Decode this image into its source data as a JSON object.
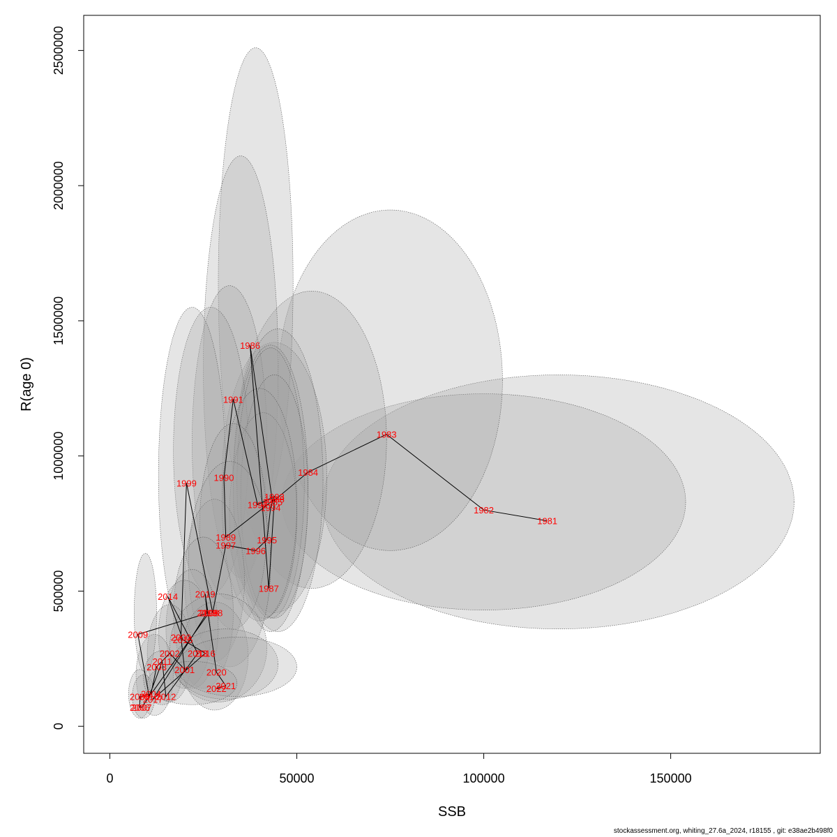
{
  "footer": "stockassessment.org, whiting_27.6a_2024, r18155 , git: e38ae2b498f0",
  "chart_data": {
    "type": "scatter",
    "title": "",
    "xlabel": "SSB",
    "ylabel": "R(age 0)",
    "xlim": [
      -7000,
      190000
    ],
    "ylim": [
      -100000,
      2630000
    ],
    "xticks": [
      0,
      50000,
      100000,
      150000
    ],
    "xtick_labels": [
      "0",
      "50000",
      "100000",
      "150000"
    ],
    "yticks": [
      0,
      500000,
      1000000,
      1500000,
      2000000,
      2500000
    ],
    "ytick_labels": [
      "0",
      "500000",
      "1000000",
      "1500000",
      "2000000",
      "2500000"
    ],
    "grid": false,
    "connected_by_year": true,
    "point_color": "#ff0000",
    "line_color": "#000000",
    "ellipse_fill": "#a0a0a0",
    "points": [
      {
        "year": "1981",
        "ssb": 117000,
        "r": 760000
      },
      {
        "year": "1982",
        "ssb": 100000,
        "r": 800000
      },
      {
        "year": "1983",
        "ssb": 74000,
        "r": 1080000
      },
      {
        "year": "1984",
        "ssb": 53000,
        "r": 940000
      },
      {
        "year": "1985",
        "ssb": 43500,
        "r": 830000
      },
      {
        "year": "1986",
        "ssb": 37500,
        "r": 1410000
      },
      {
        "year": "1987",
        "ssb": 42500,
        "r": 510000
      },
      {
        "year": "1988",
        "ssb": 44000,
        "r": 840000
      },
      {
        "year": "1989",
        "ssb": 31000,
        "r": 700000
      },
      {
        "year": "1990",
        "ssb": 30500,
        "r": 920000
      },
      {
        "year": "1991",
        "ssb": 33000,
        "r": 1210000
      },
      {
        "year": "1992",
        "ssb": 39500,
        "r": 820000
      },
      {
        "year": "1993",
        "ssb": 44000,
        "r": 850000
      },
      {
        "year": "1994",
        "ssb": 43000,
        "r": 810000
      },
      {
        "year": "1995",
        "ssb": 42000,
        "r": 690000
      },
      {
        "year": "1996",
        "ssb": 39000,
        "r": 650000
      },
      {
        "year": "1997",
        "ssb": 31000,
        "r": 670000
      },
      {
        "year": "1998",
        "ssb": 27500,
        "r": 420000
      },
      {
        "year": "1999",
        "ssb": 20500,
        "r": 900000
      },
      {
        "year": "2000",
        "ssb": 19000,
        "r": 330000
      },
      {
        "year": "2001",
        "ssb": 20000,
        "r": 210000
      },
      {
        "year": "2002",
        "ssb": 16000,
        "r": 270000
      },
      {
        "year": "2003",
        "ssb": 12500,
        "r": 220000
      },
      {
        "year": "2004",
        "ssb": 11000,
        "r": 120000
      },
      {
        "year": "2005",
        "ssb": 8000,
        "r": 110000
      },
      {
        "year": "2006",
        "ssb": 8000,
        "r": 70000
      },
      {
        "year": "2007",
        "ssb": 8500,
        "r": 70000
      },
      {
        "year": "2008",
        "ssb": 26500,
        "r": 420000
      },
      {
        "year": "2009",
        "ssb": 7500,
        "r": 340000
      },
      {
        "year": "2010",
        "ssb": 10500,
        "r": 110000
      },
      {
        "year": "2011",
        "ssb": 14000,
        "r": 240000
      },
      {
        "year": "2012",
        "ssb": 15000,
        "r": 110000
      },
      {
        "year": "2013",
        "ssb": 23500,
        "r": 270000
      },
      {
        "year": "2014",
        "ssb": 15500,
        "r": 480000
      },
      {
        "year": "2015",
        "ssb": 19500,
        "r": 320000
      },
      {
        "year": "2016",
        "ssb": 25500,
        "r": 270000
      },
      {
        "year": "2017",
        "ssb": 11500,
        "r": 100000
      },
      {
        "year": "2018",
        "ssb": 26000,
        "r": 420000
      },
      {
        "year": "2019",
        "ssb": 25500,
        "r": 490000
      },
      {
        "year": "2020",
        "ssb": 28500,
        "r": 200000
      },
      {
        "year": "2021",
        "ssb": 31000,
        "r": 150000
      },
      {
        "year": "2022",
        "ssb": 28500,
        "r": 140000
      }
    ],
    "ellipses": [
      {
        "cx": 120000,
        "cy": 830000,
        "rx": 63000,
        "ry": 470000
      },
      {
        "cx": 100000,
        "cy": 830000,
        "rx": 54000,
        "ry": 400000
      },
      {
        "cx": 75000,
        "cy": 1280000,
        "rx": 30000,
        "ry": 630000
      },
      {
        "cx": 54000,
        "cy": 1060000,
        "rx": 20000,
        "ry": 550000
      },
      {
        "cx": 44000,
        "cy": 920000,
        "rx": 14000,
        "ry": 500000
      },
      {
        "cx": 39000,
        "cy": 1640000,
        "rx": 10000,
        "ry": 870000
      },
      {
        "cx": 35000,
        "cy": 1330000,
        "rx": 10000,
        "ry": 780000
      },
      {
        "cx": 45000,
        "cy": 910000,
        "rx": 12000,
        "ry": 560000
      },
      {
        "cx": 32000,
        "cy": 1050000,
        "rx": 10000,
        "ry": 580000
      },
      {
        "cx": 27000,
        "cy": 1020000,
        "rx": 10000,
        "ry": 530000
      },
      {
        "cx": 22000,
        "cy": 930000,
        "rx": 9000,
        "ry": 620000
      },
      {
        "cx": 43000,
        "cy": 880000,
        "rx": 10000,
        "ry": 530000
      },
      {
        "cx": 43000,
        "cy": 900000,
        "rx": 9000,
        "ry": 500000
      },
      {
        "cx": 44000,
        "cy": 850000,
        "rx": 9000,
        "ry": 450000
      },
      {
        "cx": 41000,
        "cy": 780000,
        "rx": 9000,
        "ry": 380000
      },
      {
        "cx": 40000,
        "cy": 820000,
        "rx": 10000,
        "ry": 430000
      },
      {
        "cx": 33000,
        "cy": 740000,
        "rx": 9000,
        "ry": 380000
      },
      {
        "cx": 28000,
        "cy": 540000,
        "rx": 8000,
        "ry": 300000
      },
      {
        "cx": 32000,
        "cy": 600000,
        "rx": 11000,
        "ry": 380000
      },
      {
        "cx": 25000,
        "cy": 420000,
        "rx": 8000,
        "ry": 280000
      },
      {
        "cx": 22000,
        "cy": 360000,
        "rx": 7000,
        "ry": 220000
      },
      {
        "cx": 20000,
        "cy": 340000,
        "rx": 7000,
        "ry": 200000
      },
      {
        "cx": 16000,
        "cy": 270000,
        "rx": 6000,
        "ry": 180000
      },
      {
        "cx": 12000,
        "cy": 190000,
        "rx": 5000,
        "ry": 150000
      },
      {
        "cx": 9500,
        "cy": 420000,
        "rx": 3000,
        "ry": 220000
      },
      {
        "cx": 8000,
        "cy": 120000,
        "rx": 3000,
        "ry": 90000
      },
      {
        "cx": 9000,
        "cy": 110000,
        "rx": 3000,
        "ry": 80000
      },
      {
        "cx": 14000,
        "cy": 180000,
        "rx": 5000,
        "ry": 100000
      },
      {
        "cx": 28000,
        "cy": 260000,
        "rx": 9000,
        "ry": 200000
      },
      {
        "cx": 29000,
        "cy": 290000,
        "rx": 13000,
        "ry": 200000
      },
      {
        "cx": 31000,
        "cy": 230000,
        "rx": 14000,
        "ry": 130000
      },
      {
        "cx": 34000,
        "cy": 220000,
        "rx": 16000,
        "ry": 110000
      },
      {
        "cx": 22000,
        "cy": 160000,
        "rx": 12000,
        "ry": 80000
      }
    ]
  }
}
